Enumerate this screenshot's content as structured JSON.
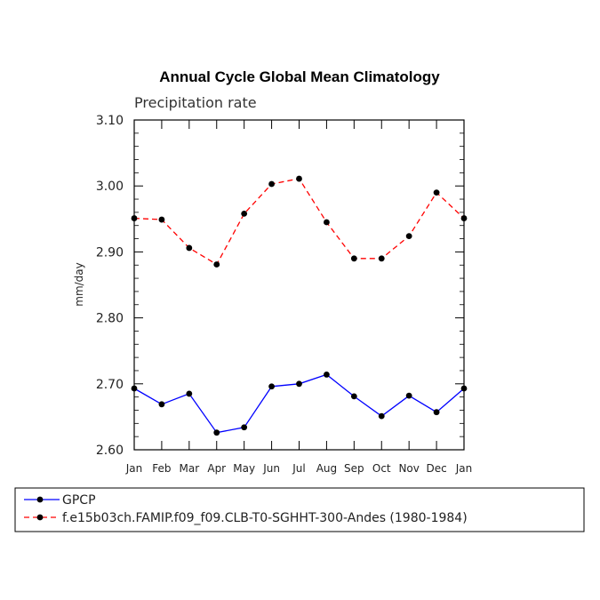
{
  "chart_data": {
    "type": "line",
    "title": "Annual Cycle Global Mean Climatology",
    "subtitle": "Precipitation rate",
    "xlabel": "",
    "ylabel": "mm/day",
    "categories": [
      "Jan",
      "Feb",
      "Mar",
      "Apr",
      "May",
      "Jun",
      "Jul",
      "Aug",
      "Sep",
      "Oct",
      "Nov",
      "Dec",
      "Jan"
    ],
    "ylim": [
      2.6,
      3.1
    ],
    "yticks": [
      "2.60",
      "2.70",
      "2.80",
      "2.90",
      "3.00",
      "3.10"
    ],
    "ytick_values": [
      2.6,
      2.7,
      2.8,
      2.9,
      3.0,
      3.1
    ],
    "grid": false,
    "legend_position": "bottom-left",
    "series": [
      {
        "name": "GPCP",
        "color": "#0000ff",
        "style": "solid",
        "values": [
          2.693,
          2.669,
          2.685,
          2.626,
          2.634,
          2.696,
          2.7,
          2.714,
          2.681,
          2.651,
          2.682,
          2.657,
          2.693
        ]
      },
      {
        "name": "f.e15b03ch.FAMIP.f09_f09.CLB-T0-SGHHT-300-Andes (1980-1984)",
        "color": "#ff0000",
        "style": "dashed",
        "values": [
          2.951,
          2.949,
          2.906,
          2.881,
          2.958,
          3.003,
          3.011,
          2.945,
          2.89,
          2.89,
          2.924,
          2.99,
          2.951
        ]
      }
    ]
  }
}
